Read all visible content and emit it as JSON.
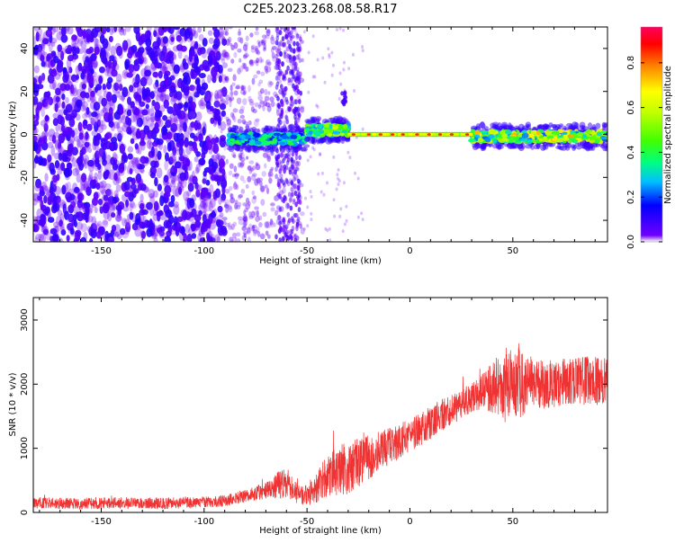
{
  "title": "C2E5.2023.268.08.58.R17",
  "colors": {
    "snr_line": "#f03232",
    "spec_low": "#5000ff",
    "spec_high": "#ff0000",
    "frame": "#000000"
  },
  "colorbar": {
    "label": "Normalized spectral amplitude",
    "ticks": [
      "0.0",
      "0.2",
      "0.4",
      "0.6",
      "0.8"
    ],
    "tick_values": [
      0.0,
      0.2,
      0.4,
      0.6,
      0.8
    ],
    "range": [
      0,
      0.96
    ]
  },
  "chart_data": [
    {
      "type": "heatmap",
      "title": "C2E5.2023.268.08.58.R17",
      "xlabel": "Height of straight line (km)",
      "ylabel": "Frequency (Hz)",
      "xlim": [
        -183,
        96
      ],
      "ylim": [
        -50,
        50
      ],
      "xticks": [
        -150,
        -100,
        -50,
        0,
        50
      ],
      "xtick_labels": [
        "-150",
        "-100",
        "-50",
        "0",
        "50"
      ],
      "yticks": [
        -40,
        -20,
        0,
        20,
        40
      ],
      "ytick_labels": [
        "-40",
        "-20",
        "0",
        "20",
        "40"
      ],
      "colormap": "rainbow (purple = low, red = high)",
      "features": [
        {
          "x_range": [
            -183,
            -90
          ],
          "freq_range": [
            -50,
            50
          ],
          "amplitude": 0.1
        },
        {
          "x_range": [
            -88,
            -50
          ],
          "freq_center": -2,
          "amplitude": 0.3
        },
        {
          "x_range": [
            -65,
            -53
          ],
          "freq_range": [
            -50,
            50
          ],
          "amplitude": 0.08
        },
        {
          "x_range": [
            -50,
            -30
          ],
          "freq_center": 2,
          "amplitude": 0.45
        },
        {
          "x_range": [
            -30,
            30
          ],
          "freq_center": 0,
          "amplitude": 0.9
        },
        {
          "x_range": [
            30,
            96
          ],
          "freq_center": -1,
          "amplitude": 0.5
        }
      ]
    },
    {
      "type": "line",
      "xlabel": "Height of straight line (km)",
      "ylabel": "SNR (10 * v/v)",
      "xlim": [
        -183,
        96
      ],
      "ylim": [
        0,
        3350
      ],
      "xticks": [
        -150,
        -100,
        -50,
        0,
        50
      ],
      "xtick_labels": [
        "-150",
        "-100",
        "-50",
        "0",
        "50"
      ],
      "yticks": [
        0,
        1000,
        2000,
        3000
      ],
      "ytick_labels": [
        "0",
        "1000",
        "2000",
        "3000"
      ],
      "x_envelope": [
        -183,
        -160,
        -140,
        -120,
        -100,
        -90,
        -80,
        -70,
        -65,
        -60,
        -55,
        -50,
        -45,
        -40,
        -35,
        -30,
        -25,
        -20,
        -15,
        -10,
        -5,
        0,
        5,
        10,
        15,
        20,
        25,
        30,
        35,
        40,
        45,
        50,
        55,
        60,
        65,
        70,
        75,
        80,
        85,
        90,
        96
      ],
      "y_mean": [
        150,
        140,
        150,
        140,
        160,
        180,
        260,
        340,
        420,
        480,
        300,
        260,
        420,
        560,
        650,
        700,
        780,
        850,
        940,
        1030,
        1110,
        1200,
        1290,
        1400,
        1510,
        1600,
        1700,
        1790,
        1880,
        1950,
        2000,
        2050,
        2000,
        2000,
        1990,
        2020,
        2060,
        2050,
        2050,
        2050,
        2050
      ],
      "y_spread": [
        90,
        90,
        90,
        90,
        90,
        90,
        100,
        130,
        200,
        250,
        160,
        170,
        260,
        330,
        380,
        420,
        380,
        360,
        320,
        300,
        280,
        270,
        270,
        260,
        250,
        250,
        240,
        240,
        270,
        400,
        520,
        620,
        500,
        420,
        420,
        380,
        380,
        360,
        380,
        380,
        360
      ]
    }
  ]
}
